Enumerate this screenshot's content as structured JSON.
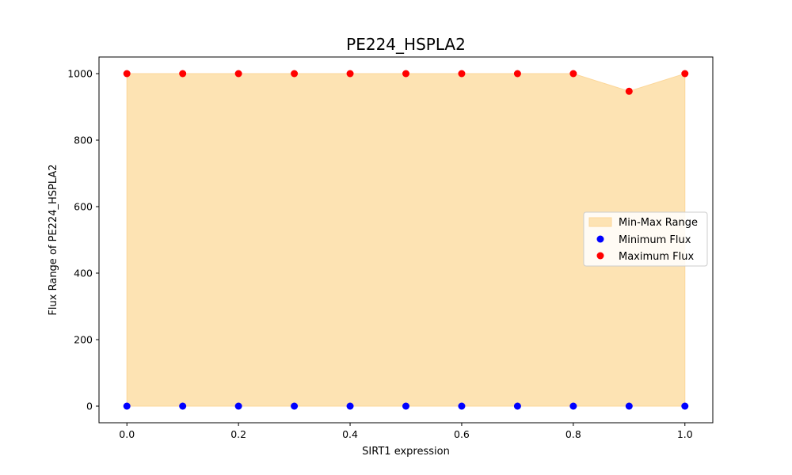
{
  "chart_data": {
    "type": "scatter",
    "title": "PE224_HSPLA2",
    "xlabel": "SIRT1 expression",
    "ylabel": "Flux Range of PE224_HSPLA2",
    "xlim": [
      -0.05,
      1.05
    ],
    "ylim": [
      -50,
      1050
    ],
    "x": [
      0.0,
      0.1,
      0.2,
      0.3,
      0.4,
      0.5,
      0.6,
      0.7,
      0.8,
      0.9,
      1.0
    ],
    "xticks": [
      0.0,
      0.2,
      0.4,
      0.6,
      0.8,
      1.0
    ],
    "xtick_labels": [
      "0.0",
      "0.2",
      "0.4",
      "0.6",
      "0.8",
      "1.0"
    ],
    "yticks": [
      0,
      200,
      400,
      600,
      800,
      1000
    ],
    "ytick_labels": [
      "0",
      "200",
      "400",
      "600",
      "800",
      "1000"
    ],
    "grid": false,
    "legend_position": "center-right",
    "series": [
      {
        "name": "Min-Max Range",
        "kind": "fill_between",
        "color": "#fde3b3",
        "edge_color": "#fcd79a",
        "lower": [
          0,
          0,
          0,
          0,
          0,
          0,
          0,
          0,
          0,
          0,
          0
        ],
        "upper": [
          1000,
          1000,
          1000,
          1000,
          1000,
          1000,
          1000,
          1000,
          1000,
          947,
          1000
        ]
      },
      {
        "name": "Minimum Flux",
        "kind": "scatter",
        "color": "#0000ff",
        "values": [
          0,
          0,
          0,
          0,
          0,
          0,
          0,
          0,
          0,
          0,
          0
        ]
      },
      {
        "name": "Maximum Flux",
        "kind": "scatter",
        "color": "#ff0000",
        "values": [
          1000,
          1000,
          1000,
          1000,
          1000,
          1000,
          1000,
          1000,
          1000,
          947,
          1000
        ]
      }
    ]
  }
}
